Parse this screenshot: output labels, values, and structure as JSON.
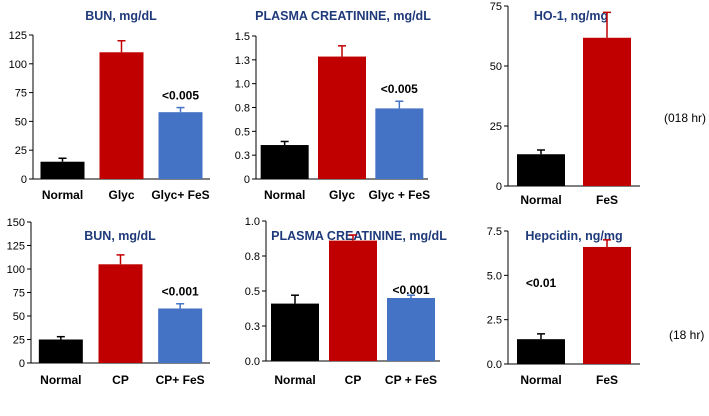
{
  "side_labels": [
    "(018 hr)",
    "(18 hr)"
  ],
  "colors": {
    "black": "#000000",
    "red": "#c00000",
    "blue": "#4472c4",
    "title": "#1f3a7a"
  },
  "chart_data": [
    {
      "type": "bar",
      "title": "BUN, mg/dL",
      "categories": [
        "Normal",
        "Glyc",
        "Glyc+ FeS"
      ],
      "values": [
        15,
        110,
        58
      ],
      "errors": [
        3,
        10,
        4
      ],
      "colors": [
        "#000000",
        "#c00000",
        "#4472c4"
      ],
      "ylim": [
        0,
        125
      ],
      "yticks": [
        "0",
        "25",
        "50",
        "75",
        "100",
        "125"
      ],
      "annotation": "<0.005",
      "annotation_index": 2
    },
    {
      "type": "bar",
      "title": "PLASMA  CREATININE, mg/dL",
      "categories": [
        "Normal",
        "Glyc",
        "Glyc + FeS"
      ],
      "values": [
        0.38,
        1.37,
        0.79
      ],
      "errors": [
        0.04,
        0.12,
        0.08
      ],
      "colors": [
        "#000000",
        "#c00000",
        "#4472c4"
      ],
      "ylim": [
        0,
        1.6
      ],
      "yticks": [
        "0",
        "0.3",
        "0.5",
        "0.8",
        "1.0",
        "1.3",
        "1.5"
      ],
      "annotation": "<0.005",
      "annotation_index": 2
    },
    {
      "type": "bar",
      "title": "HO-1,  ng/mg",
      "categories": [
        "Normal",
        "FeS"
      ],
      "values": [
        15,
        70
      ],
      "errors": [
        2,
        12
      ],
      "colors": [
        "#000000",
        "#c00000"
      ],
      "ylim": [
        0,
        85
      ],
      "yticks": [
        "0",
        "25",
        "50",
        "75"
      ],
      "annotation": "",
      "annotation_index": 1
    },
    {
      "type": "bar",
      "title": "BUN, mg/dL",
      "categories": [
        "Normal",
        "CP",
        "CP+ FeS"
      ],
      "values": [
        25,
        105,
        58
      ],
      "errors": [
        3,
        10,
        5
      ],
      "colors": [
        "#000000",
        "#c00000",
        "#4472c4"
      ],
      "ylim": [
        0,
        150
      ],
      "yticks": [
        "0",
        "25",
        "50",
        "75",
        "100",
        "125",
        "150"
      ],
      "annotation": "<0.001",
      "annotation_index": 2
    },
    {
      "type": "bar",
      "title": "PLASMA CREATININE,  mg/dL",
      "categories": [
        "Normal",
        "CP",
        "CP + FeS"
      ],
      "values": [
        0.41,
        0.86,
        0.45
      ],
      "errors": [
        0.06,
        0.04,
        0.02
      ],
      "colors": [
        "#000000",
        "#c00000",
        "#4472c4"
      ],
      "ylim": [
        0,
        1.0
      ],
      "yticks": [
        "0.0",
        "0.3",
        "0.5",
        "0.8",
        "1.0"
      ],
      "annotation": "<0.001",
      "annotation_index": 2
    },
    {
      "type": "bar",
      "title": "Hepcidin,  ng/mg",
      "categories": [
        "Normal",
        "FeS"
      ],
      "values": [
        1.4,
        6.6
      ],
      "errors": [
        0.3,
        0.4
      ],
      "colors": [
        "#000000",
        "#c00000"
      ],
      "ylim": [
        0,
        7.5
      ],
      "yticks": [
        "0.0",
        "2.5",
        "5.0",
        "7.5"
      ],
      "annotation": "<0.01",
      "annotation_index": 0
    }
  ]
}
